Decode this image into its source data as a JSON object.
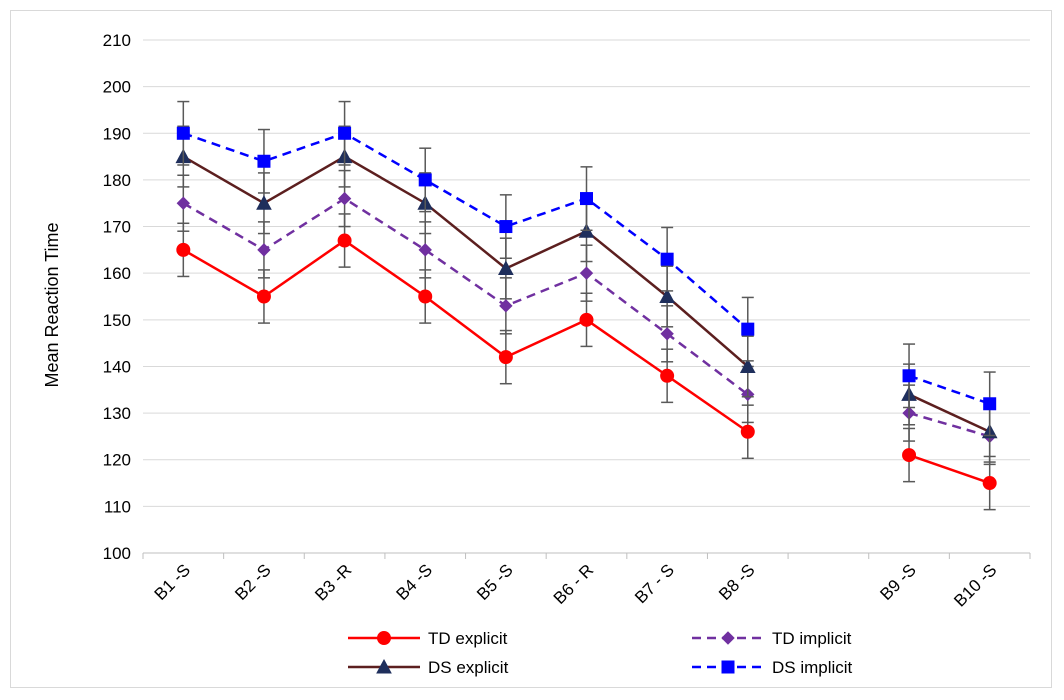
{
  "chart_data": {
    "type": "line",
    "title": "",
    "xlabel": "",
    "ylabel": "Mean Reaction Time",
    "ylim": [
      100,
      210
    ],
    "yticks": [
      "100",
      "110",
      "120",
      "130",
      "140",
      "150",
      "160",
      "170",
      "180",
      "190",
      "200",
      "210"
    ],
    "categories": [
      "B1 -S",
      "B2 -S",
      "B3 -R",
      "B4 -S",
      "B5 -S",
      "B6 - R",
      "B7 - S",
      "B8 -S",
      "",
      "B9 -S",
      "B10 -S"
    ],
    "grid": true,
    "legend_placement": "bottom",
    "error_bars": true,
    "series": [
      {
        "name": "TD explicit",
        "color": "#ff0000",
        "line_style": "solid",
        "marker": "circle",
        "values": [
          165,
          155,
          167,
          155,
          142,
          150,
          138,
          126,
          null,
          121,
          115
        ],
        "errors": [
          5.7,
          5.7,
          5.7,
          5.7,
          5.7,
          5.7,
          5.7,
          5.7,
          null,
          5.7,
          5.7
        ]
      },
      {
        "name": "TD implicit",
        "color": "#7030a0",
        "line_style": "dashed",
        "marker": "diamond",
        "values": [
          175,
          165,
          176,
          165,
          153,
          160,
          147,
          134,
          null,
          130,
          125
        ],
        "errors": [
          6,
          6,
          6,
          6,
          6,
          6,
          6,
          6,
          null,
          6,
          6
        ]
      },
      {
        "name": "DS explicit",
        "color": "#5c1f1f",
        "line_style": "solid",
        "marker": "triangle",
        "values": [
          185,
          175,
          185,
          175,
          161,
          169,
          155,
          140,
          null,
          134,
          126
        ],
        "errors": [
          6.5,
          6.5,
          6.5,
          6.5,
          6.5,
          6.5,
          6.5,
          6.5,
          null,
          6.5,
          6.5
        ]
      },
      {
        "name": "DS implicit",
        "color": "#0000ff",
        "line_style": "dashed",
        "marker": "square",
        "values": [
          190,
          184,
          190,
          180,
          170,
          176,
          163,
          148,
          null,
          138,
          132
        ],
        "errors": [
          6.8,
          6.8,
          6.8,
          6.8,
          6.8,
          6.8,
          6.8,
          6.8,
          null,
          6.8,
          6.8
        ]
      }
    ]
  }
}
